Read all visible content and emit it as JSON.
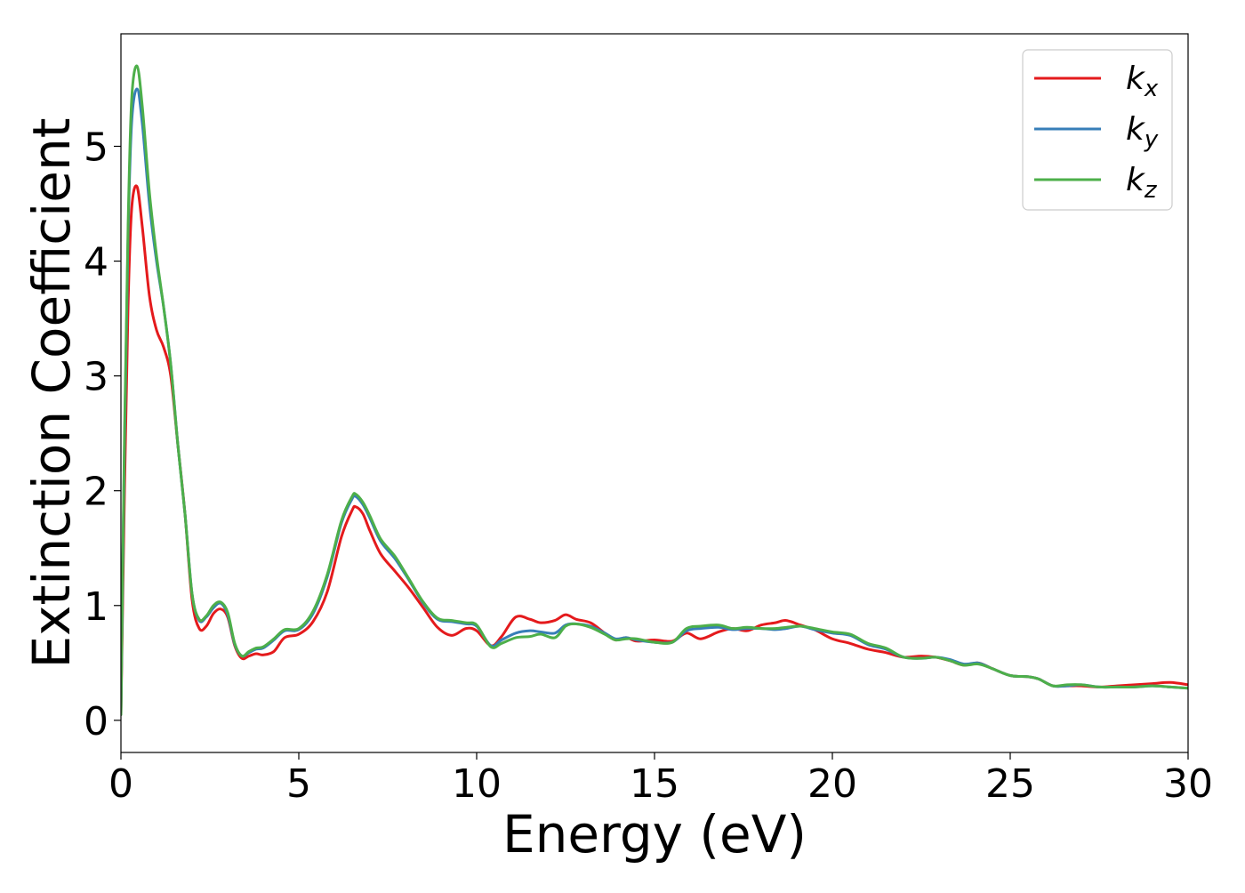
{
  "chart_data": {
    "type": "line",
    "xlabel": "Energy (eV)",
    "ylabel": "Extinction Coefficient",
    "xlim": [
      0,
      30
    ],
    "ylim": [
      -0.28,
      5.98
    ],
    "xticks": [
      0,
      5,
      10,
      15,
      20,
      25,
      30
    ],
    "yticks": [
      0,
      1,
      2,
      3,
      4,
      5
    ],
    "grid": false,
    "legend_position": "top-right",
    "series": [
      {
        "name_base": "k",
        "name_sub": "x",
        "color": "#e41a1c",
        "points": [
          [
            0,
            0.05
          ],
          [
            0.1,
            2.0
          ],
          [
            0.2,
            3.6
          ],
          [
            0.3,
            4.45
          ],
          [
            0.45,
            4.65
          ],
          [
            0.6,
            4.3
          ],
          [
            0.8,
            3.7
          ],
          [
            1.0,
            3.4
          ],
          [
            1.2,
            3.25
          ],
          [
            1.4,
            3.0
          ],
          [
            1.6,
            2.4
          ],
          [
            1.8,
            1.8
          ],
          [
            2.0,
            1.05
          ],
          [
            2.2,
            0.8
          ],
          [
            2.4,
            0.82
          ],
          [
            2.6,
            0.93
          ],
          [
            2.8,
            0.97
          ],
          [
            3.0,
            0.9
          ],
          [
            3.2,
            0.65
          ],
          [
            3.4,
            0.54
          ],
          [
            3.6,
            0.56
          ],
          [
            3.8,
            0.58
          ],
          [
            4.0,
            0.57
          ],
          [
            4.3,
            0.6
          ],
          [
            4.6,
            0.72
          ],
          [
            5.0,
            0.75
          ],
          [
            5.4,
            0.86
          ],
          [
            5.8,
            1.12
          ],
          [
            6.2,
            1.6
          ],
          [
            6.5,
            1.83
          ],
          [
            6.6,
            1.86
          ],
          [
            6.8,
            1.8
          ],
          [
            7.0,
            1.65
          ],
          [
            7.3,
            1.45
          ],
          [
            7.7,
            1.3
          ],
          [
            8.1,
            1.15
          ],
          [
            8.5,
            0.98
          ],
          [
            8.9,
            0.81
          ],
          [
            9.3,
            0.74
          ],
          [
            9.7,
            0.8
          ],
          [
            10.0,
            0.78
          ],
          [
            10.4,
            0.65
          ],
          [
            10.7,
            0.73
          ],
          [
            11.1,
            0.9
          ],
          [
            11.5,
            0.88
          ],
          [
            11.8,
            0.85
          ],
          [
            12.2,
            0.87
          ],
          [
            12.5,
            0.92
          ],
          [
            12.8,
            0.88
          ],
          [
            13.2,
            0.85
          ],
          [
            13.6,
            0.76
          ],
          [
            13.9,
            0.7
          ],
          [
            14.2,
            0.72
          ],
          [
            14.5,
            0.69
          ],
          [
            15.0,
            0.7
          ],
          [
            15.5,
            0.69
          ],
          [
            15.9,
            0.76
          ],
          [
            16.3,
            0.71
          ],
          [
            16.8,
            0.77
          ],
          [
            17.2,
            0.8
          ],
          [
            17.6,
            0.78
          ],
          [
            18.0,
            0.83
          ],
          [
            18.4,
            0.85
          ],
          [
            18.7,
            0.87
          ],
          [
            19.1,
            0.83
          ],
          [
            19.5,
            0.79
          ],
          [
            20.0,
            0.71
          ],
          [
            20.5,
            0.67
          ],
          [
            21.0,
            0.62
          ],
          [
            21.5,
            0.59
          ],
          [
            22.0,
            0.55
          ],
          [
            22.5,
            0.56
          ],
          [
            22.9,
            0.55
          ],
          [
            23.3,
            0.52
          ],
          [
            23.7,
            0.48
          ],
          [
            24.1,
            0.5
          ],
          [
            24.5,
            0.45
          ],
          [
            25.0,
            0.39
          ],
          [
            25.5,
            0.38
          ],
          [
            25.8,
            0.36
          ],
          [
            26.2,
            0.3
          ],
          [
            26.6,
            0.3
          ],
          [
            27.0,
            0.3
          ],
          [
            27.5,
            0.29
          ],
          [
            28.0,
            0.3
          ],
          [
            28.5,
            0.31
          ],
          [
            29.0,
            0.32
          ],
          [
            29.5,
            0.33
          ],
          [
            30.0,
            0.31
          ]
        ]
      },
      {
        "name_base": "k",
        "name_sub": "y",
        "color": "#377eb8",
        "points": [
          [
            0,
            0.05
          ],
          [
            0.1,
            2.4
          ],
          [
            0.2,
            4.2
          ],
          [
            0.3,
            5.2
          ],
          [
            0.45,
            5.5
          ],
          [
            0.6,
            5.2
          ],
          [
            0.8,
            4.5
          ],
          [
            1.0,
            4.0
          ],
          [
            1.2,
            3.6
          ],
          [
            1.4,
            3.1
          ],
          [
            1.6,
            2.4
          ],
          [
            1.8,
            1.8
          ],
          [
            2.0,
            1.1
          ],
          [
            2.2,
            0.87
          ],
          [
            2.4,
            0.9
          ],
          [
            2.6,
            0.98
          ],
          [
            2.8,
            1.02
          ],
          [
            3.0,
            0.92
          ],
          [
            3.2,
            0.66
          ],
          [
            3.4,
            0.56
          ],
          [
            3.6,
            0.59
          ],
          [
            3.8,
            0.62
          ],
          [
            4.0,
            0.63
          ],
          [
            4.3,
            0.7
          ],
          [
            4.6,
            0.78
          ],
          [
            5.0,
            0.79
          ],
          [
            5.4,
            0.93
          ],
          [
            5.8,
            1.25
          ],
          [
            6.2,
            1.72
          ],
          [
            6.5,
            1.93
          ],
          [
            6.6,
            1.95
          ],
          [
            6.8,
            1.88
          ],
          [
            7.0,
            1.76
          ],
          [
            7.3,
            1.56
          ],
          [
            7.7,
            1.41
          ],
          [
            8.1,
            1.22
          ],
          [
            8.5,
            1.02
          ],
          [
            8.9,
            0.88
          ],
          [
            9.3,
            0.86
          ],
          [
            9.7,
            0.84
          ],
          [
            10.0,
            0.82
          ],
          [
            10.4,
            0.65
          ],
          [
            10.7,
            0.7
          ],
          [
            11.1,
            0.76
          ],
          [
            11.5,
            0.78
          ],
          [
            11.8,
            0.77
          ],
          [
            12.2,
            0.76
          ],
          [
            12.5,
            0.83
          ],
          [
            12.8,
            0.84
          ],
          [
            13.2,
            0.82
          ],
          [
            13.6,
            0.76
          ],
          [
            13.9,
            0.71
          ],
          [
            14.2,
            0.72
          ],
          [
            14.5,
            0.7
          ],
          [
            15.0,
            0.68
          ],
          [
            15.5,
            0.68
          ],
          [
            15.9,
            0.78
          ],
          [
            16.3,
            0.8
          ],
          [
            16.8,
            0.81
          ],
          [
            17.2,
            0.79
          ],
          [
            17.6,
            0.8
          ],
          [
            18.0,
            0.8
          ],
          [
            18.4,
            0.79
          ],
          [
            18.7,
            0.8
          ],
          [
            19.1,
            0.82
          ],
          [
            19.5,
            0.79
          ],
          [
            20.0,
            0.76
          ],
          [
            20.5,
            0.74
          ],
          [
            21.0,
            0.66
          ],
          [
            21.5,
            0.62
          ],
          [
            22.0,
            0.55
          ],
          [
            22.5,
            0.54
          ],
          [
            22.9,
            0.55
          ],
          [
            23.3,
            0.53
          ],
          [
            23.7,
            0.49
          ],
          [
            24.1,
            0.5
          ],
          [
            24.5,
            0.45
          ],
          [
            25.0,
            0.39
          ],
          [
            25.5,
            0.38
          ],
          [
            25.8,
            0.36
          ],
          [
            26.2,
            0.3
          ],
          [
            26.6,
            0.3
          ],
          [
            27.0,
            0.31
          ],
          [
            27.5,
            0.29
          ],
          [
            28.0,
            0.29
          ],
          [
            28.5,
            0.29
          ],
          [
            29.0,
            0.3
          ],
          [
            29.5,
            0.29
          ],
          [
            30.0,
            0.28
          ]
        ]
      },
      {
        "name_base": "k",
        "name_sub": "z",
        "color": "#4daf4a",
        "points": [
          [
            0,
            0.05
          ],
          [
            0.1,
            2.5
          ],
          [
            0.2,
            4.3
          ],
          [
            0.3,
            5.4
          ],
          [
            0.45,
            5.7
          ],
          [
            0.6,
            5.35
          ],
          [
            0.8,
            4.6
          ],
          [
            1.0,
            4.05
          ],
          [
            1.2,
            3.6
          ],
          [
            1.4,
            3.1
          ],
          [
            1.6,
            2.4
          ],
          [
            1.8,
            1.8
          ],
          [
            2.0,
            1.1
          ],
          [
            2.2,
            0.88
          ],
          [
            2.4,
            0.91
          ],
          [
            2.6,
            1.0
          ],
          [
            2.8,
            1.03
          ],
          [
            3.0,
            0.94
          ],
          [
            3.2,
            0.67
          ],
          [
            3.4,
            0.56
          ],
          [
            3.6,
            0.6
          ],
          [
            3.8,
            0.63
          ],
          [
            4.0,
            0.64
          ],
          [
            4.3,
            0.71
          ],
          [
            4.6,
            0.79
          ],
          [
            5.0,
            0.8
          ],
          [
            5.4,
            0.95
          ],
          [
            5.8,
            1.27
          ],
          [
            6.2,
            1.74
          ],
          [
            6.5,
            1.95
          ],
          [
            6.6,
            1.97
          ],
          [
            6.8,
            1.9
          ],
          [
            7.0,
            1.78
          ],
          [
            7.3,
            1.58
          ],
          [
            7.7,
            1.43
          ],
          [
            8.1,
            1.23
          ],
          [
            8.5,
            1.03
          ],
          [
            8.9,
            0.89
          ],
          [
            9.3,
            0.87
          ],
          [
            9.7,
            0.85
          ],
          [
            10.0,
            0.83
          ],
          [
            10.4,
            0.64
          ],
          [
            10.7,
            0.67
          ],
          [
            11.1,
            0.72
          ],
          [
            11.5,
            0.73
          ],
          [
            11.8,
            0.75
          ],
          [
            12.2,
            0.72
          ],
          [
            12.5,
            0.82
          ],
          [
            12.8,
            0.84
          ],
          [
            13.2,
            0.81
          ],
          [
            13.6,
            0.75
          ],
          [
            13.9,
            0.7
          ],
          [
            14.2,
            0.71
          ],
          [
            14.5,
            0.71
          ],
          [
            15.0,
            0.68
          ],
          [
            15.5,
            0.68
          ],
          [
            15.9,
            0.8
          ],
          [
            16.3,
            0.82
          ],
          [
            16.8,
            0.83
          ],
          [
            17.2,
            0.8
          ],
          [
            17.6,
            0.81
          ],
          [
            18.0,
            0.8
          ],
          [
            18.4,
            0.8
          ],
          [
            18.7,
            0.81
          ],
          [
            19.1,
            0.82
          ],
          [
            19.5,
            0.8
          ],
          [
            20.0,
            0.77
          ],
          [
            20.5,
            0.75
          ],
          [
            21.0,
            0.67
          ],
          [
            21.5,
            0.63
          ],
          [
            22.0,
            0.55
          ],
          [
            22.5,
            0.54
          ],
          [
            22.9,
            0.55
          ],
          [
            23.3,
            0.52
          ],
          [
            23.7,
            0.48
          ],
          [
            24.1,
            0.49
          ],
          [
            24.5,
            0.45
          ],
          [
            25.0,
            0.39
          ],
          [
            25.5,
            0.38
          ],
          [
            25.8,
            0.36
          ],
          [
            26.2,
            0.3
          ],
          [
            26.6,
            0.31
          ],
          [
            27.0,
            0.31
          ],
          [
            27.5,
            0.29
          ],
          [
            28.0,
            0.29
          ],
          [
            28.5,
            0.29
          ],
          [
            29.0,
            0.3
          ],
          [
            29.5,
            0.29
          ],
          [
            30.0,
            0.28
          ]
        ]
      }
    ]
  }
}
